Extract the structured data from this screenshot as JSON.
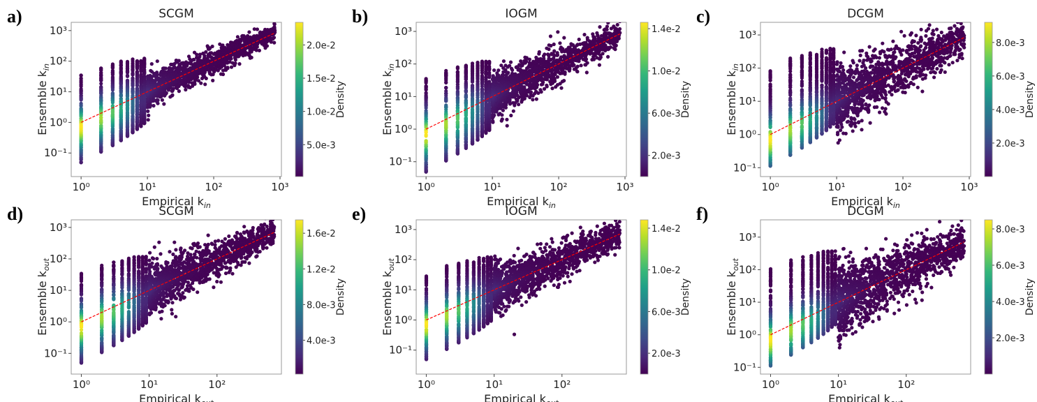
{
  "chart_data": [
    {
      "panel": "a)",
      "type": "scatter",
      "title": "SCGM",
      "xlabel": "Empirical k",
      "xsub": "in",
      "ylabel": "Ensemble k",
      "ysub": "in",
      "xscale": "log",
      "yscale": "log",
      "xlim": [
        0.71,
        1050
      ],
      "ylim": [
        0.017,
        1860
      ],
      "xticks": [
        1,
        10,
        100,
        1000
      ],
      "yticks": [
        0.1,
        1,
        10,
        100,
        1000
      ],
      "colorbar": {
        "label": "Density",
        "min": 0.0002,
        "max": 0.0234,
        "ticks": [
          0.005,
          0.01,
          0.015,
          0.02
        ],
        "ticklabels": [
          "5.0e-3",
          "1.0e-2",
          "1.5e-2",
          "2.0e-2"
        ],
        "colormap": "viridis"
      },
      "reference_line": "y = x",
      "reference_color": "#ff0000"
    },
    {
      "panel": "b)",
      "type": "scatter",
      "title": "IOGM",
      "xlabel": "Empirical k",
      "xsub": "in",
      "ylabel": "Ensemble k",
      "ysub": "in",
      "xscale": "log",
      "yscale": "log",
      "xlim": [
        0.71,
        1050
      ],
      "ylim": [
        0.035,
        1900
      ],
      "xticks": [
        1,
        10,
        100,
        1000
      ],
      "yticks": [
        0.1,
        1,
        10,
        100,
        1000
      ],
      "colorbar": {
        "label": "Density",
        "min": 0.0,
        "max": 0.0146,
        "ticks": [
          0.002,
          0.006,
          0.01,
          0.014
        ],
        "ticklabels": [
          "2.0e-3",
          "6.0e-3",
          "1.0e-2",
          "1.4e-2"
        ],
        "colormap": "viridis"
      },
      "reference_line": "y = x",
      "reference_color": "#ff0000"
    },
    {
      "panel": "c)",
      "type": "scatter",
      "title": "DCGM",
      "xlabel": "Empirical k",
      "xsub": "in",
      "ylabel": "Ensemble k",
      "ysub": "in",
      "xscale": "log",
      "yscale": "log",
      "xlim": [
        0.71,
        1050
      ],
      "ylim": [
        0.054,
        2400
      ],
      "xticks": [
        1,
        10,
        100,
        1000
      ],
      "yticks": [
        0.1,
        1,
        10,
        100,
        1000
      ],
      "colorbar": {
        "label": "Density",
        "min": 0.0,
        "max": 0.0092,
        "ticks": [
          0.002,
          0.004,
          0.006,
          0.008
        ],
        "ticklabels": [
          "2.0e-3",
          "4.0e-3",
          "6.0e-3",
          "8.0e-3"
        ],
        "colormap": "viridis"
      },
      "reference_line": "y = x",
      "reference_color": "#ff0000"
    },
    {
      "panel": "d)",
      "type": "scatter",
      "title": "SCGM",
      "xlabel": "Empirical k",
      "xsub": "out",
      "ylabel": "Ensemble k",
      "ysub": "out",
      "xscale": "log",
      "yscale": "log",
      "xlim": [
        0.71,
        890
      ],
      "ylim": [
        0.022,
        1740
      ],
      "xticks": [
        1,
        10,
        100
      ],
      "yticks": [
        0.1,
        1,
        10,
        100,
        1000
      ],
      "colorbar": {
        "label": "Density",
        "min": 0.0002,
        "max": 0.0175,
        "ticks": [
          0.004,
          0.008,
          0.012,
          0.016
        ],
        "ticklabels": [
          "4.0e-3",
          "8.0e-3",
          "1.2e-2",
          "1.6e-2"
        ],
        "colormap": "viridis"
      },
      "reference_line": "y = x",
      "reference_color": "#ff0000"
    },
    {
      "panel": "e)",
      "type": "scatter",
      "title": "IOGM",
      "xlabel": "Empirical k",
      "xsub": "out",
      "ylabel": "Ensemble k",
      "ysub": "out",
      "xscale": "log",
      "yscale": "log",
      "xlim": [
        0.71,
        890
      ],
      "ylim": [
        0.016,
        2100
      ],
      "xticks": [
        1,
        10,
        100
      ],
      "yticks": [
        0.1,
        1,
        10,
        100,
        1000
      ],
      "colorbar": {
        "label": "Density",
        "min": 0.0,
        "max": 0.0148,
        "ticks": [
          0.002,
          0.006,
          0.01,
          0.014
        ],
        "ticklabels": [
          "2.0e-3",
          "6.0e-3",
          "1.0e-2",
          "1.4e-2"
        ],
        "colormap": "viridis"
      },
      "reference_line": "y = x",
      "reference_color": "#ff0000"
    },
    {
      "panel": "f)",
      "type": "scatter",
      "title": "DCGM",
      "xlabel": "Empirical k",
      "xsub": "out",
      "ylabel": "Ensemble k",
      "ysub": "out",
      "xscale": "log",
      "yscale": "log",
      "xlim": [
        0.71,
        890
      ],
      "ylim": [
        0.062,
        3400
      ],
      "xticks": [
        1,
        10,
        100
      ],
      "yticks": [
        0.1,
        1,
        10,
        100,
        1000
      ],
      "colorbar": {
        "label": "Density",
        "min": 0.0,
        "max": 0.0085,
        "ticks": [
          0.002,
          0.004,
          0.006,
          0.008
        ],
        "ticklabels": [
          "2.0e-3",
          "4.0e-3",
          "6.0e-3",
          "8.0e-3"
        ],
        "colormap": "viridis"
      },
      "reference_line": "y = x",
      "reference_color": "#ff0000"
    }
  ]
}
